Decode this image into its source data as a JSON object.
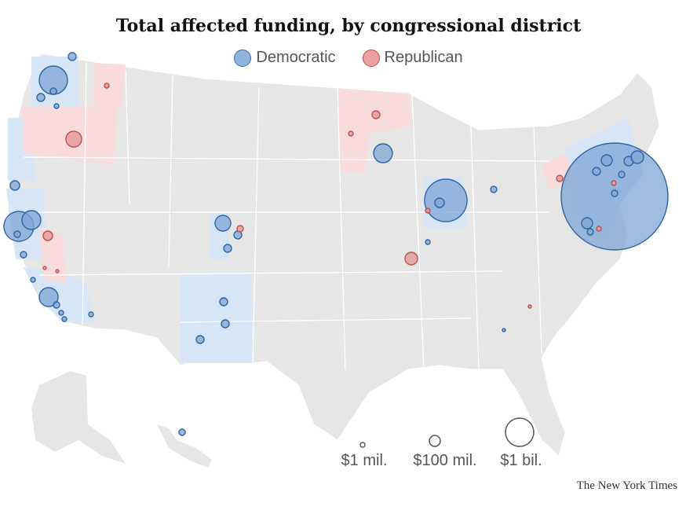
{
  "title": "Total affected funding, by congressional district",
  "legend": {
    "democratic": "Democratic",
    "republican": "Republican"
  },
  "colors": {
    "dem_fill": "#7ea6d6",
    "dem_stroke": "#2f64a3",
    "rep_fill": "#e39a9a",
    "rep_stroke": "#c0504d",
    "land": "#e6e6e6",
    "dem_area": "#d6e6f7",
    "rep_area": "#f8dcdc"
  },
  "size_legend": [
    {
      "label": "$1 mil.",
      "value_million": 1
    },
    {
      "label": "$100 mil.",
      "value_million": 100
    },
    {
      "label": "$1 bil.",
      "value_million": 1000
    }
  ],
  "credit": "The New York Times"
}
